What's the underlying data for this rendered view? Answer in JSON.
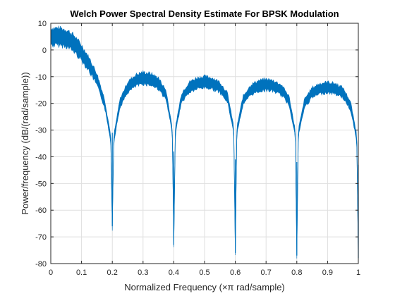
{
  "chart_data": {
    "type": "line",
    "title": "Welch Power Spectral Density Estimate For BPSK Modulation",
    "xlabel": "Normalized Frequency  (×π rad/sample)",
    "ylabel": "Power/frequency (dB/(rad/sample))",
    "xlim": [
      0,
      1
    ],
    "ylim": [
      -80,
      10
    ],
    "x_ticks": [
      0,
      0.1,
      0.2,
      0.3,
      0.4,
      0.5,
      0.6,
      0.7,
      0.8,
      0.9,
      1
    ],
    "x_tick_labels": [
      "0",
      "0.1",
      "0.2",
      "0.3",
      "0.4",
      "0.5",
      "0.6",
      "0.7",
      "0.8",
      "0.9",
      "1"
    ],
    "y_ticks": [
      10,
      0,
      -10,
      -20,
      -30,
      -40,
      -50,
      -60,
      -70,
      -80
    ],
    "y_tick_labels": [
      "10",
      "0",
      "-10",
      "-20",
      "-30",
      "-40",
      "-50",
      "-60",
      "-70",
      "-80"
    ],
    "grid": true,
    "line_color": "#0072bd",
    "series": [
      {
        "x": [
          0,
          0.025,
          0.05,
          0.075,
          0.1,
          0.125,
          0.15,
          0.175,
          0.195,
          0.2,
          0.205,
          0.225,
          0.25,
          0.275,
          0.3,
          0.325,
          0.35,
          0.375,
          0.395,
          0.4,
          0.405,
          0.425,
          0.45,
          0.475,
          0.5,
          0.525,
          0.55,
          0.575,
          0.595,
          0.6,
          0.605,
          0.625,
          0.65,
          0.675,
          0.7,
          0.725,
          0.75,
          0.775,
          0.795,
          0.8,
          0.805,
          0.825,
          0.85,
          0.875,
          0.9,
          0.925,
          0.95,
          0.975,
          0.995,
          1
        ],
        "y": [
          5,
          5,
          4.5,
          2.5,
          -1,
          -5.5,
          -11,
          -20,
          -33,
          -66,
          -33,
          -20,
          -14,
          -11.5,
          -10.5,
          -11,
          -12.5,
          -17,
          -30,
          -73,
          -30,
          -18,
          -14,
          -12.5,
          -12,
          -12.5,
          -14,
          -18,
          -30,
          -76,
          -30,
          -19,
          -15,
          -13.5,
          -13,
          -13.5,
          -15,
          -19,
          -31,
          -77,
          -31,
          -20,
          -16,
          -14.5,
          -14,
          -14.5,
          -16,
          -21,
          -33,
          -78
        ],
        "spread_db": 3.5
      }
    ]
  }
}
